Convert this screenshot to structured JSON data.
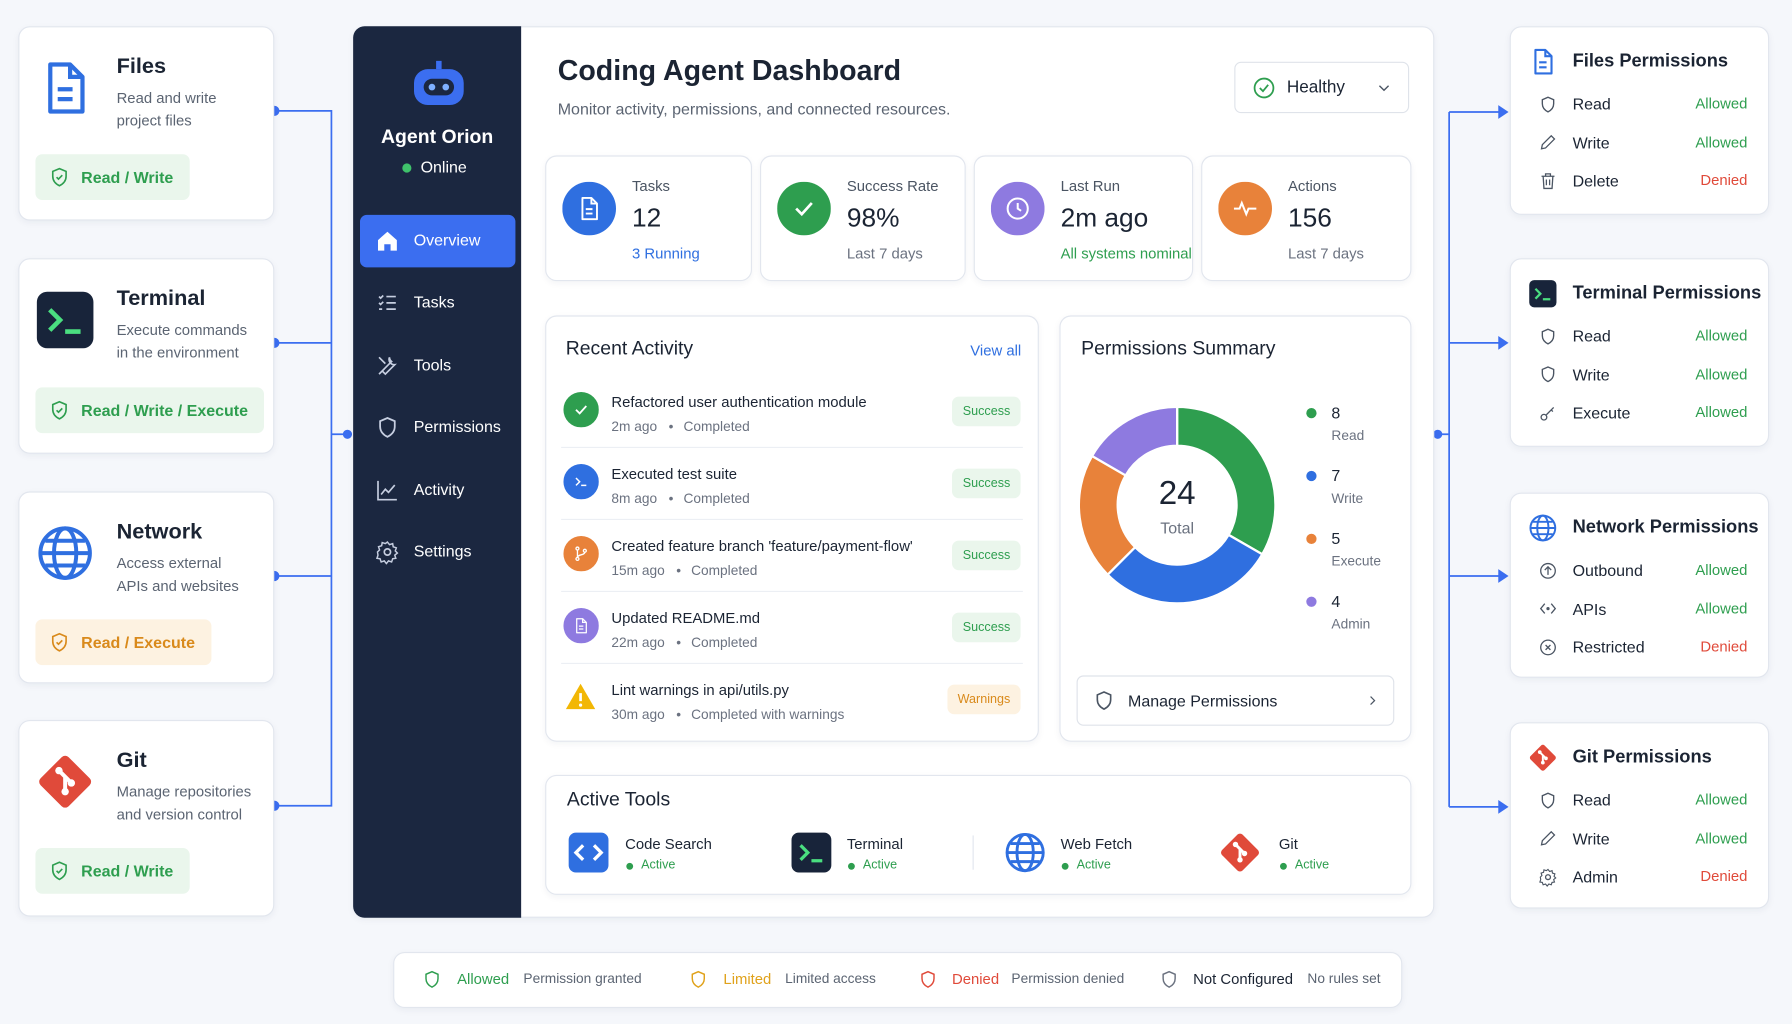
{
  "resources": [
    {
      "title": "Files",
      "desc": [
        "Read and write",
        "project files"
      ],
      "badge": "Read / Write",
      "color": "#2e9e4f",
      "bg": "#eaf6ec"
    },
    {
      "title": "Terminal",
      "desc": [
        "Execute commands",
        "in the environment"
      ],
      "badge": "Read / Write / Execute",
      "color": "#2e9e4f",
      "bg": "#eaf6ec"
    },
    {
      "title": "Network",
      "desc": [
        "Access external",
        "APIs and websites"
      ],
      "badge": "Read / Execute",
      "color": "#d98a1b",
      "bg": "#fdf2e1"
    },
    {
      "title": "Git",
      "desc": [
        "Manage repositories",
        "and version control"
      ],
      "badge": "Read / Write",
      "color": "#2e9e4f",
      "bg": "#eaf6ec"
    }
  ],
  "sidebar": {
    "agent": "Agent Orion",
    "status": "Online",
    "nav": [
      "Overview",
      "Tasks",
      "Tools",
      "Permissions",
      "Activity",
      "Settings"
    ]
  },
  "header": {
    "title": "Coding Agent Dashboard",
    "subtitle": "Monitor activity, permissions, and connected resources.",
    "status": "Healthy"
  },
  "stats": [
    {
      "label": "Tasks",
      "value": "12",
      "sub": "3 Running",
      "color": "#2f6fe0"
    },
    {
      "label": "Success Rate",
      "value": "98%",
      "sub": "Last 7 days",
      "color": "#6b7280"
    },
    {
      "label": "Last Run",
      "value": "2m ago",
      "sub": "All systems nominal",
      "color": "#2e9e4f"
    },
    {
      "label": "Actions",
      "value": "156",
      "sub": "Last 7 days",
      "color": "#6b7280"
    }
  ],
  "activity": {
    "title": "Recent Activity",
    "link": "View all",
    "items": [
      {
        "title": "Refactored user authentication module",
        "time": "2m ago",
        "status": "Completed",
        "badge": "Success",
        "color": "#2e9e4f",
        "bg": "#eaf6ec"
      },
      {
        "title": "Executed test suite",
        "time": "8m ago",
        "status": "Completed",
        "badge": "Success",
        "color": "#2e9e4f",
        "bg": "#eaf6ec"
      },
      {
        "title": "Created feature branch 'feature/payment-flow'",
        "time": "15m ago",
        "status": "Completed",
        "badge": "Success",
        "color": "#2e9e4f",
        "bg": "#eaf6ec"
      },
      {
        "title": "Updated README.md",
        "time": "22m ago",
        "status": "Completed",
        "badge": "Success",
        "color": "#2e9e4f",
        "bg": "#eaf6ec"
      },
      {
        "title": "Lint warnings in api/utils.py",
        "time": "30m ago",
        "status": "Completed with warnings",
        "badge": "Warnings",
        "color": "#d98a1b",
        "bg": "#fdf2e1"
      }
    ]
  },
  "permissions_summary": {
    "title": "Permissions Summary",
    "total": 24,
    "total_label": "Total",
    "segments": [
      {
        "value": 8,
        "label": "Read",
        "color": "#2e9e4f"
      },
      {
        "value": 7,
        "label": "Write",
        "color": "#2f6fe0"
      },
      {
        "value": 5,
        "label": "Execute",
        "color": "#e8823a"
      },
      {
        "value": 4,
        "label": "Admin",
        "color": "#8e7ae0"
      }
    ],
    "button": "Manage Permissions"
  },
  "tools": {
    "title": "Active Tools",
    "items": [
      {
        "name": "Code Search",
        "status": "Active"
      },
      {
        "name": "Terminal",
        "status": "Active"
      },
      {
        "name": "Web Fetch",
        "status": "Active"
      },
      {
        "name": "Git",
        "status": "Active"
      }
    ]
  },
  "permission_panels": [
    {
      "title": "Files Permissions",
      "rows": [
        {
          "name": "Read",
          "state": "Allowed",
          "color": "#2e9e4f"
        },
        {
          "name": "Write",
          "state": "Allowed",
          "color": "#2e9e4f"
        },
        {
          "name": "Delete",
          "state": "Denied",
          "color": "#e04a3a"
        }
      ]
    },
    {
      "title": "Terminal Permissions",
      "rows": [
        {
          "name": "Read",
          "state": "Allowed",
          "color": "#2e9e4f"
        },
        {
          "name": "Write",
          "state": "Allowed",
          "color": "#2e9e4f"
        },
        {
          "name": "Execute",
          "state": "Allowed",
          "color": "#2e9e4f"
        }
      ]
    },
    {
      "title": "Network Permissions",
      "rows": [
        {
          "name": "Outbound",
          "state": "Allowed",
          "color": "#2e9e4f"
        },
        {
          "name": "APIs",
          "state": "Allowed",
          "color": "#2e9e4f"
        },
        {
          "name": "Restricted",
          "state": "Denied",
          "color": "#e04a3a"
        }
      ]
    },
    {
      "title": "Git Permissions",
      "rows": [
        {
          "name": "Read",
          "state": "Allowed",
          "color": "#2e9e4f"
        },
        {
          "name": "Write",
          "state": "Allowed",
          "color": "#2e9e4f"
        },
        {
          "name": "Admin",
          "state": "Denied",
          "color": "#e04a3a"
        }
      ]
    }
  ],
  "legend": [
    {
      "label": "Allowed",
      "desc": "Permission granted",
      "color": "#2e9e4f"
    },
    {
      "label": "Limited",
      "desc": "Limited access",
      "color": "#e0a21b"
    },
    {
      "label": "Denied",
      "desc": "Permission denied",
      "color": "#e04a3a"
    },
    {
      "label": "Not Configured",
      "desc": "No rules set",
      "color": "#6b7280"
    }
  ]
}
